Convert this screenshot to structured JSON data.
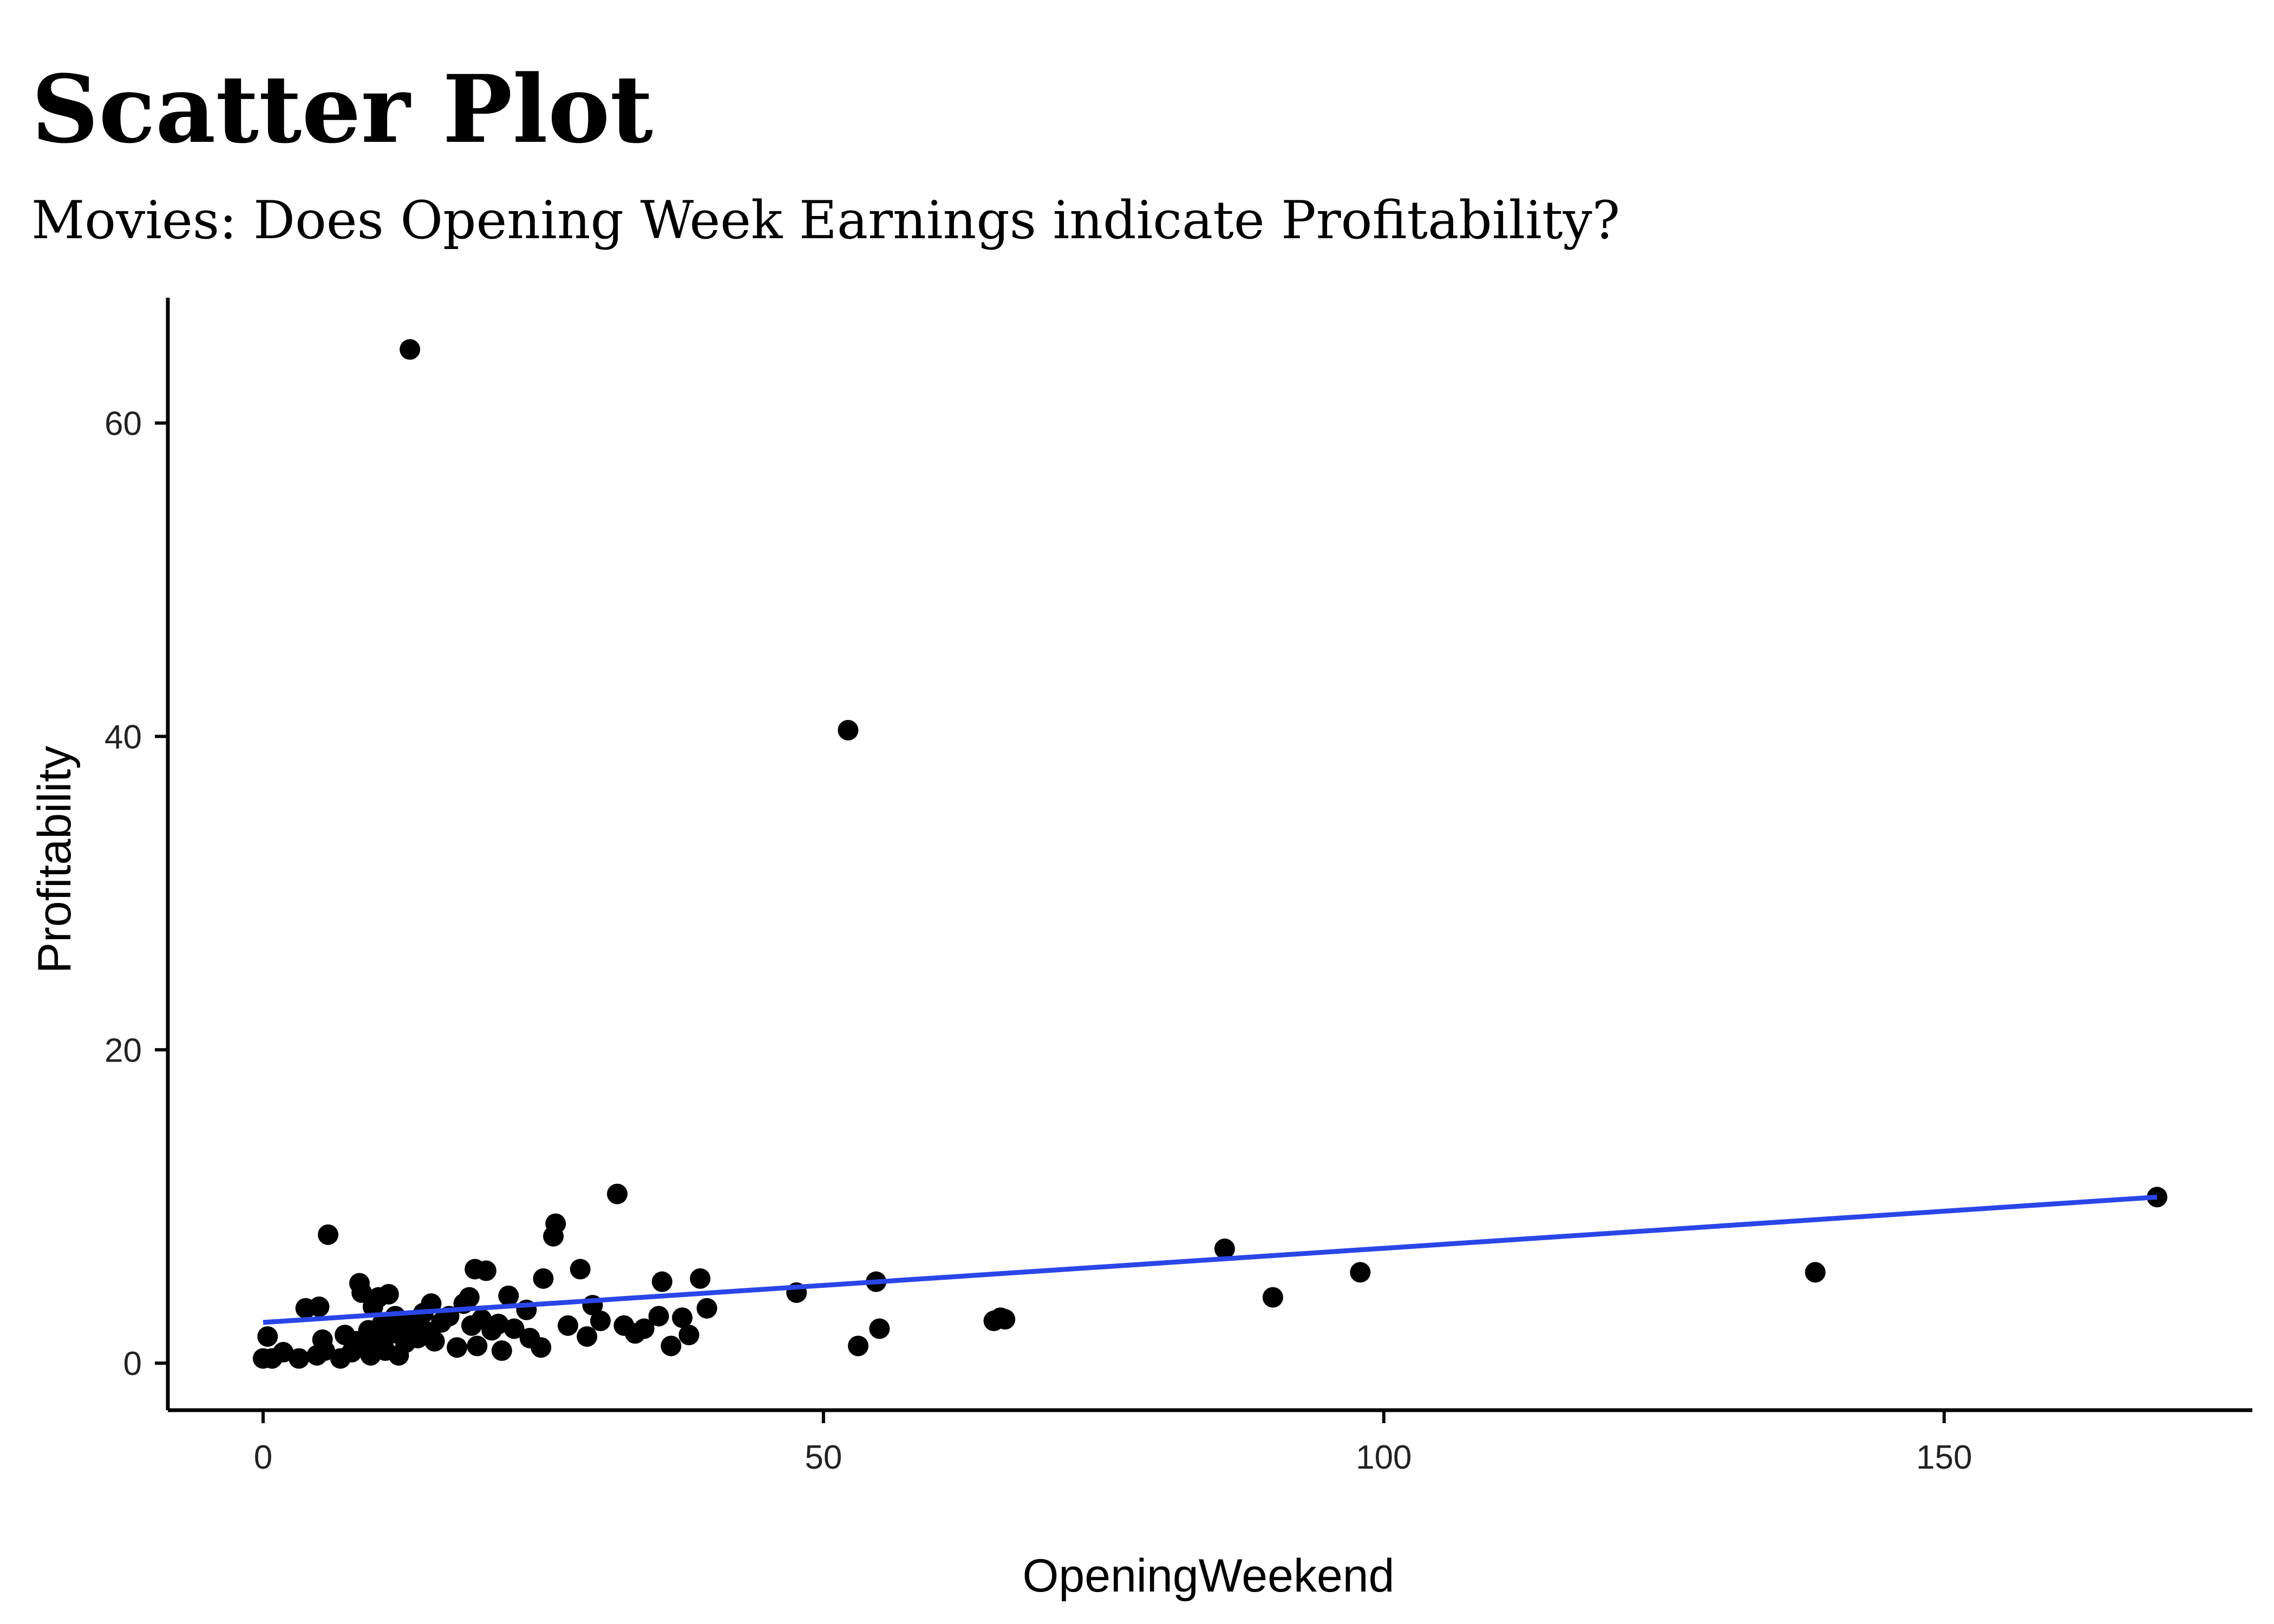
{
  "chart_data": {
    "type": "scatter",
    "title": "Scatter Plot",
    "subtitle": "Movies: Does Opening Week Earnings indicate Profitability?",
    "xlabel": "OpeningWeekend",
    "ylabel": "Profitability",
    "xlim": [
      -8.5,
      177.5
    ],
    "ylim": [
      -3,
      68
    ],
    "xticks": [
      0,
      50,
      100,
      150
    ],
    "yticks": [
      0,
      20,
      40,
      60
    ],
    "grid": false,
    "legend": "none",
    "point_color": "#000000",
    "trendline": {
      "type": "linear",
      "color": "#2a46e8",
      "points": [
        [
          0,
          2.6
        ],
        [
          169,
          10.6
        ]
      ]
    },
    "points": [
      [
        0,
        0.3
      ],
      [
        0.4,
        1.7
      ],
      [
        0.8,
        0.3
      ],
      [
        1.8,
        0.7
      ],
      [
        3.2,
        0.3
      ],
      [
        3.8,
        3.5
      ],
      [
        4.8,
        0.5
      ],
      [
        5.0,
        3.6
      ],
      [
        5.3,
        1.5
      ],
      [
        5.5,
        0.8
      ],
      [
        5.8,
        8.2
      ],
      [
        6.9,
        0.3
      ],
      [
        7.3,
        1.8
      ],
      [
        7.9,
        0.7
      ],
      [
        8.3,
        1.4
      ],
      [
        8.6,
        5.1
      ],
      [
        8.8,
        4.5
      ],
      [
        9.2,
        0.9
      ],
      [
        9.4,
        2.1
      ],
      [
        9.6,
        0.5
      ],
      [
        9.8,
        3.6
      ],
      [
        10.1,
        1.4
      ],
      [
        10.3,
        4.2
      ],
      [
        10.6,
        2.5
      ],
      [
        10.9,
        0.8
      ],
      [
        11.2,
        4.4
      ],
      [
        11.5,
        1.9
      ],
      [
        11.8,
        3.0
      ],
      [
        12.1,
        0.5
      ],
      [
        12.4,
        2.2
      ],
      [
        12.7,
        1.3
      ],
      [
        13.1,
        64.7
      ],
      [
        13.4,
        2.7
      ],
      [
        13.8,
        1.6
      ],
      [
        14.3,
        3.2
      ],
      [
        14.7,
        2.0
      ],
      [
        15.0,
        3.8
      ],
      [
        15.3,
        1.4
      ],
      [
        15.9,
        2.6
      ],
      [
        16.6,
        3.0
      ],
      [
        17.3,
        1.0
      ],
      [
        17.9,
        3.8
      ],
      [
        18.4,
        4.2
      ],
      [
        18.6,
        2.4
      ],
      [
        18.9,
        6.0
      ],
      [
        19.1,
        1.1
      ],
      [
        19.5,
        2.8
      ],
      [
        19.9,
        5.9
      ],
      [
        20.4,
        2.1
      ],
      [
        21.0,
        2.5
      ],
      [
        21.3,
        0.8
      ],
      [
        21.9,
        4.3
      ],
      [
        22.4,
        2.2
      ],
      [
        23.5,
        3.4
      ],
      [
        23.8,
        1.6
      ],
      [
        24.8,
        1.0
      ],
      [
        25.0,
        5.4
      ],
      [
        25.9,
        8.1
      ],
      [
        26.1,
        8.9
      ],
      [
        27.2,
        2.4
      ],
      [
        28.3,
        6.0
      ],
      [
        28.9,
        1.7
      ],
      [
        29.4,
        3.7
      ],
      [
        30.1,
        2.7
      ],
      [
        31.6,
        10.8
      ],
      [
        32.2,
        2.4
      ],
      [
        33.2,
        1.9
      ],
      [
        34.0,
        2.2
      ],
      [
        35.3,
        3.0
      ],
      [
        35.6,
        5.2
      ],
      [
        36.4,
        1.1
      ],
      [
        37.4,
        2.9
      ],
      [
        38.0,
        1.8
      ],
      [
        39.0,
        5.4
      ],
      [
        39.6,
        3.5
      ],
      [
        47.6,
        4.5
      ],
      [
        52.2,
        40.4
      ],
      [
        53.1,
        1.1
      ],
      [
        54.7,
        5.2
      ],
      [
        55.0,
        2.2
      ],
      [
        65.2,
        2.7
      ],
      [
        65.8,
        2.9
      ],
      [
        66.2,
        2.8
      ],
      [
        85.8,
        7.3
      ],
      [
        90.1,
        4.2
      ],
      [
        97.9,
        5.8
      ],
      [
        138.5,
        5.8
      ],
      [
        169.0,
        10.6
      ]
    ]
  }
}
